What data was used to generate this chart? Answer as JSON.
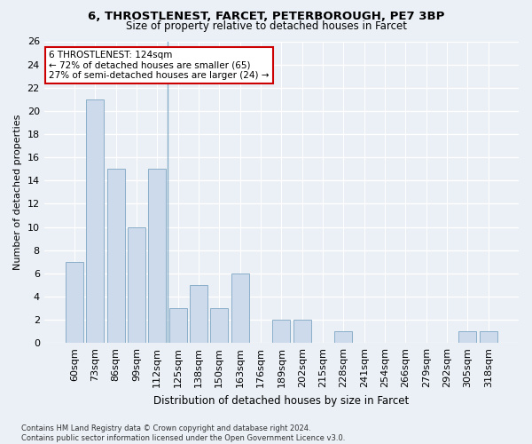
{
  "title1": "6, THROSTLENEST, FARCET, PETERBOROUGH, PE7 3BP",
  "title2": "Size of property relative to detached houses in Farcet",
  "xlabel": "Distribution of detached houses by size in Farcet",
  "ylabel": "Number of detached properties",
  "categories": [
    "60sqm",
    "73sqm",
    "86sqm",
    "99sqm",
    "112sqm",
    "125sqm",
    "138sqm",
    "150sqm",
    "163sqm",
    "176sqm",
    "189sqm",
    "202sqm",
    "215sqm",
    "228sqm",
    "241sqm",
    "254sqm",
    "266sqm",
    "279sqm",
    "292sqm",
    "305sqm",
    "318sqm"
  ],
  "values": [
    7,
    21,
    15,
    10,
    15,
    3,
    5,
    3,
    6,
    0,
    2,
    2,
    0,
    1,
    0,
    0,
    0,
    0,
    0,
    1,
    1
  ],
  "bar_color": "#ccdaeb",
  "bar_edge_color": "#8aafc8",
  "bg_color": "#eaf0f6",
  "grid_color": "#ffffff",
  "ylim": [
    0,
    26
  ],
  "yticks": [
    0,
    2,
    4,
    6,
    8,
    10,
    12,
    14,
    16,
    18,
    20,
    22,
    24,
    26
  ],
  "annotation_line1": "6 THROSTLENEST: 124sqm",
  "annotation_line2": "← 72% of detached houses are smaller (65)",
  "annotation_line3": "27% of semi-detached houses are larger (24) →",
  "annotation_box_facecolor": "#ffffff",
  "annotation_box_edgecolor": "#cc0000",
  "vline_x": 4.5,
  "vline_color": "#8aafc8",
  "footnote": "Contains HM Land Registry data © Crown copyright and database right 2024.\nContains public sector information licensed under the Open Government Licence v3.0."
}
